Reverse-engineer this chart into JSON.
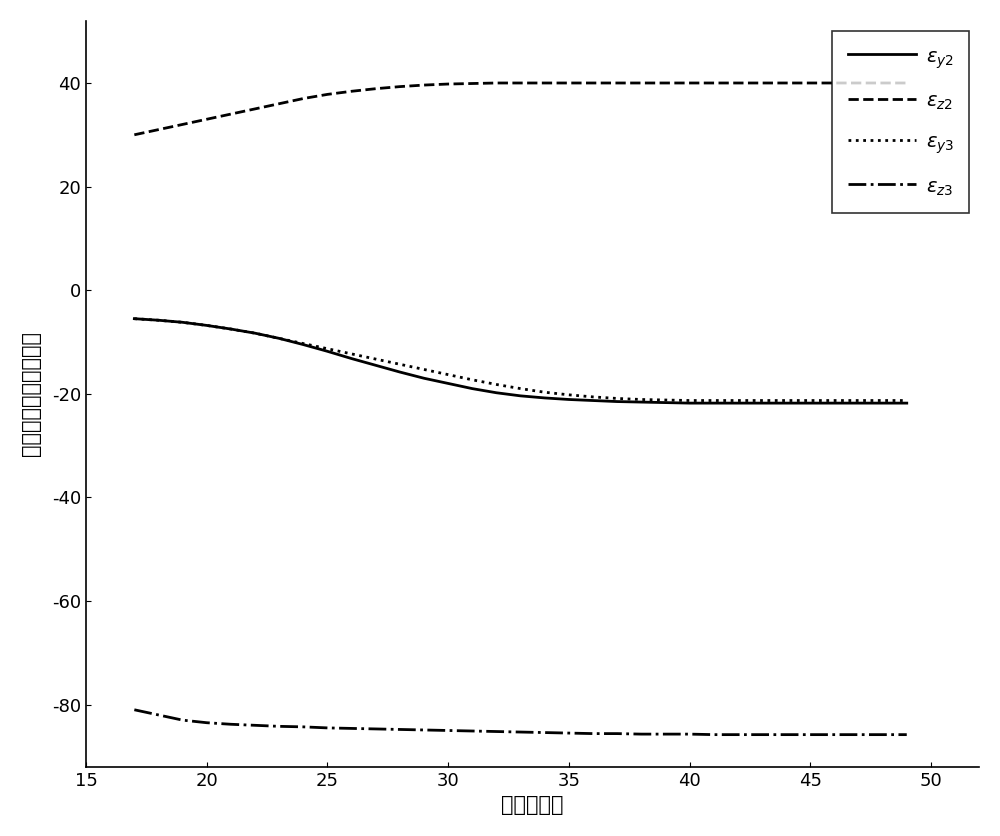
{
  "title": "",
  "xlabel": "时间（秒）",
  "ylabel": "从弹实际攻击角（度）",
  "xlim": [
    15,
    52
  ],
  "ylim": [
    -92,
    52
  ],
  "xticks": [
    15,
    20,
    25,
    30,
    35,
    40,
    45,
    50
  ],
  "yticks": [
    -80,
    -60,
    -40,
    -20,
    0,
    20,
    40
  ],
  "background_color": "#ffffff",
  "line_color": "#000000",
  "series": {
    "eps_y2": {
      "x": [
        17,
        18,
        19,
        20,
        21,
        22,
        23,
        24,
        25,
        26,
        27,
        28,
        29,
        30,
        31,
        32,
        33,
        34,
        35,
        36,
        37,
        38,
        39,
        40,
        41,
        42,
        43,
        44,
        45,
        46,
        47,
        48,
        49
      ],
      "y": [
        -5.5,
        -5.8,
        -6.2,
        -6.8,
        -7.5,
        -8.3,
        -9.3,
        -10.5,
        -11.8,
        -13.2,
        -14.5,
        -15.8,
        -17.0,
        -18.0,
        -19.0,
        -19.8,
        -20.4,
        -20.8,
        -21.1,
        -21.3,
        -21.5,
        -21.6,
        -21.7,
        -21.8,
        -21.8,
        -21.8,
        -21.8,
        -21.8,
        -21.8,
        -21.8,
        -21.8,
        -21.8,
        -21.8
      ],
      "linestyle": "solid",
      "linewidth": 2.0,
      "color": "#000000"
    },
    "eps_z2": {
      "x": [
        17,
        18,
        19,
        20,
        21,
        22,
        23,
        24,
        25,
        26,
        27,
        28,
        29,
        30,
        31,
        32,
        33,
        34,
        35,
        36,
        37,
        38,
        39,
        40,
        41,
        42,
        43,
        44,
        45,
        46,
        47,
        48,
        49
      ],
      "y": [
        30.0,
        31.0,
        32.0,
        33.0,
        34.0,
        35.0,
        36.0,
        37.0,
        37.8,
        38.4,
        38.9,
        39.3,
        39.6,
        39.8,
        39.9,
        40.0,
        40.0,
        40.0,
        40.0,
        40.0,
        40.0,
        40.0,
        40.0,
        40.0,
        40.0,
        40.0,
        40.0,
        40.0,
        40.0,
        40.0,
        40.0,
        40.0,
        40.0
      ],
      "linestyle": "dashed",
      "linewidth": 2.0,
      "color": "#000000"
    },
    "eps_y3": {
      "x": [
        17,
        18,
        19,
        20,
        21,
        22,
        23,
        24,
        25,
        26,
        27,
        28,
        29,
        30,
        31,
        32,
        33,
        34,
        35,
        36,
        37,
        38,
        39,
        40,
        41,
        42,
        43,
        44,
        45,
        46,
        47,
        48,
        49
      ],
      "y": [
        -5.5,
        -5.8,
        -6.2,
        -6.8,
        -7.5,
        -8.3,
        -9.3,
        -10.3,
        -11.3,
        -12.3,
        -13.3,
        -14.3,
        -15.3,
        -16.3,
        -17.3,
        -18.2,
        -19.0,
        -19.7,
        -20.2,
        -20.6,
        -20.9,
        -21.1,
        -21.2,
        -21.3,
        -21.3,
        -21.3,
        -21.3,
        -21.3,
        -21.3,
        -21.3,
        -21.3,
        -21.3,
        -21.3
      ],
      "linestyle": "dotted",
      "linewidth": 2.0,
      "color": "#000000"
    },
    "eps_z3": {
      "x": [
        17,
        18,
        19,
        20,
        21,
        22,
        23,
        24,
        25,
        26,
        27,
        28,
        29,
        30,
        31,
        32,
        33,
        34,
        35,
        36,
        37,
        38,
        39,
        40,
        41,
        42,
        43,
        44,
        45,
        46,
        47,
        48,
        49
      ],
      "y": [
        -81.0,
        -82.0,
        -83.0,
        -83.5,
        -83.8,
        -84.0,
        -84.2,
        -84.3,
        -84.5,
        -84.6,
        -84.7,
        -84.8,
        -84.9,
        -85.0,
        -85.1,
        -85.2,
        -85.3,
        -85.4,
        -85.5,
        -85.6,
        -85.6,
        -85.7,
        -85.7,
        -85.7,
        -85.8,
        -85.8,
        -85.8,
        -85.8,
        -85.8,
        -85.8,
        -85.8,
        -85.8,
        -85.8
      ],
      "linestyle": "dashdot",
      "linewidth": 2.0,
      "color": "#000000"
    }
  },
  "legend_fontsize": 14,
  "axis_fontsize": 15,
  "tick_fontsize": 13
}
